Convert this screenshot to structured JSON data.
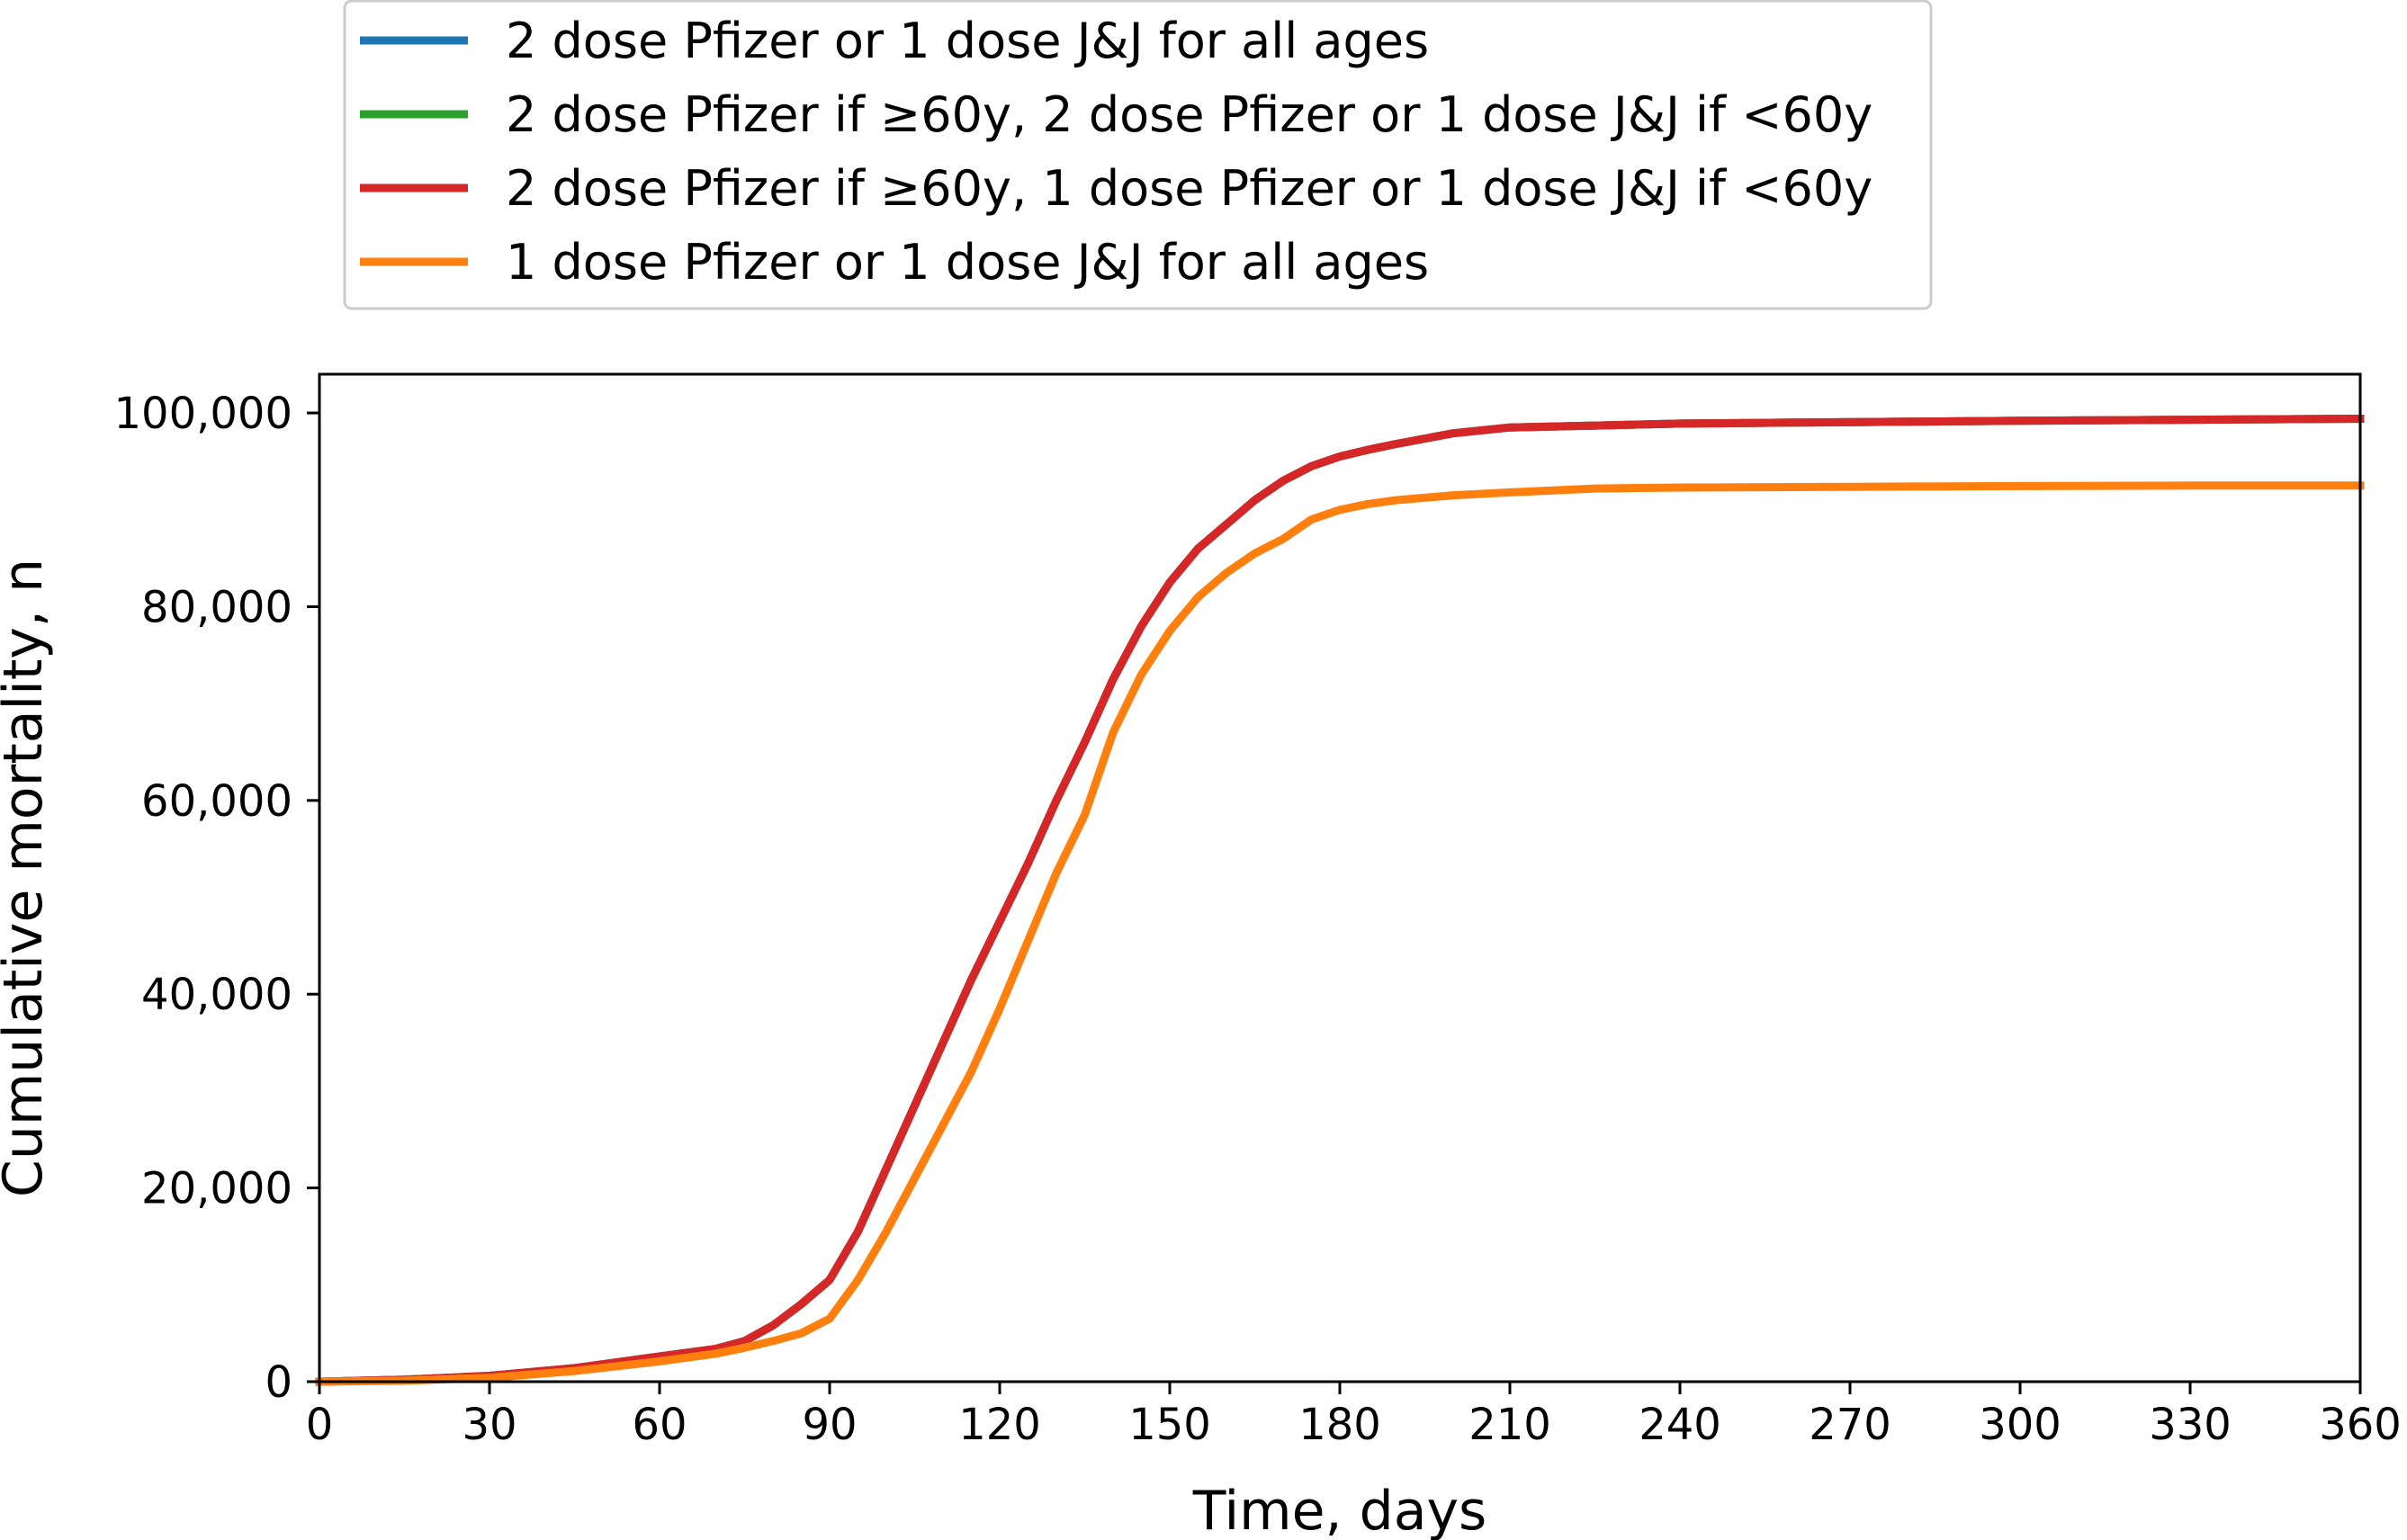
{
  "chart_data": {
    "type": "line",
    "title": "",
    "xlabel": "Time, days",
    "ylabel": "Cumulative mortality, n",
    "xlim": [
      0,
      360
    ],
    "ylim": [
      0,
      104000
    ],
    "grid": false,
    "legend_position": "top",
    "x_ticks": [
      0,
      30,
      60,
      90,
      120,
      150,
      180,
      210,
      240,
      270,
      300,
      330,
      360
    ],
    "x_tick_labels": [
      "0",
      "30",
      "60",
      "90",
      "120",
      "150",
      "180",
      "210",
      "240",
      "270",
      "300",
      "330",
      "360"
    ],
    "y_ticks": [
      0,
      20000,
      40000,
      60000,
      80000,
      100000
    ],
    "y_tick_labels": [
      "0",
      "20,000",
      "40,000",
      "60,000",
      "80,000",
      "100,000"
    ],
    "x": [
      0,
      15,
      30,
      45,
      60,
      70,
      75,
      80,
      85,
      90,
      95,
      100,
      105,
      110,
      115,
      120,
      125,
      130,
      135,
      140,
      145,
      150,
      155,
      160,
      165,
      170,
      175,
      180,
      185,
      190,
      200,
      210,
      225,
      240,
      260,
      280,
      300,
      330,
      360
    ],
    "series": [
      {
        "name": "2 dose Pfizer or 1 dose J&J for all ages",
        "color": "#1f77b4",
        "values": [
          0,
          200,
          600,
          1400,
          2600,
          3400,
          4200,
          5800,
          8000,
          10500,
          15500,
          22000,
          28500,
          35000,
          41500,
          47500,
          53500,
          60000,
          66000,
          72500,
          78000,
          82500,
          86000,
          88500,
          91000,
          93000,
          94500,
          95500,
          96200,
          96800,
          97900,
          98500,
          98700,
          98900,
          99000,
          99100,
          99200,
          99300,
          99400
        ]
      },
      {
        "name": "2 dose Pfizer if ≥60y, 2 dose Pfizer or 1 dose J&J if <60y",
        "color": "#2ca02c",
        "values": [
          0,
          200,
          600,
          1400,
          2600,
          3400,
          4200,
          5800,
          8000,
          10500,
          15500,
          22000,
          28500,
          35000,
          41500,
          47500,
          53500,
          60000,
          66000,
          72500,
          78000,
          82500,
          86000,
          88500,
          91000,
          93000,
          94500,
          95500,
          96200,
          96800,
          97900,
          98500,
          98700,
          98900,
          99000,
          99100,
          99200,
          99300,
          99400
        ]
      },
      {
        "name": "2 dose Pfizer if ≥60y, 1 dose Pfizer or 1 dose J&J if <60y",
        "color": "#d62728",
        "values": [
          0,
          200,
          600,
          1400,
          2600,
          3400,
          4200,
          5800,
          8000,
          10500,
          15500,
          22000,
          28500,
          35000,
          41500,
          47500,
          53500,
          60000,
          66000,
          72500,
          78000,
          82500,
          86000,
          88500,
          91000,
          93000,
          94500,
          95500,
          96200,
          96800,
          97900,
          98500,
          98700,
          98900,
          99000,
          99100,
          99200,
          99300,
          99400
        ]
      },
      {
        "name": "1 dose Pfizer or 1 dose J&J for all ages",
        "color": "#ff7f0e",
        "values": [
          0,
          100,
          400,
          1100,
          2100,
          2900,
          3500,
          4200,
          5000,
          6500,
          10500,
          15500,
          21000,
          26500,
          32000,
          38500,
          45500,
          52500,
          58500,
          67000,
          73000,
          77500,
          81000,
          83500,
          85500,
          87000,
          89000,
          90000,
          90600,
          91000,
          91500,
          91800,
          92200,
          92300,
          92350,
          92400,
          92450,
          92500,
          92500
        ]
      }
    ]
  }
}
